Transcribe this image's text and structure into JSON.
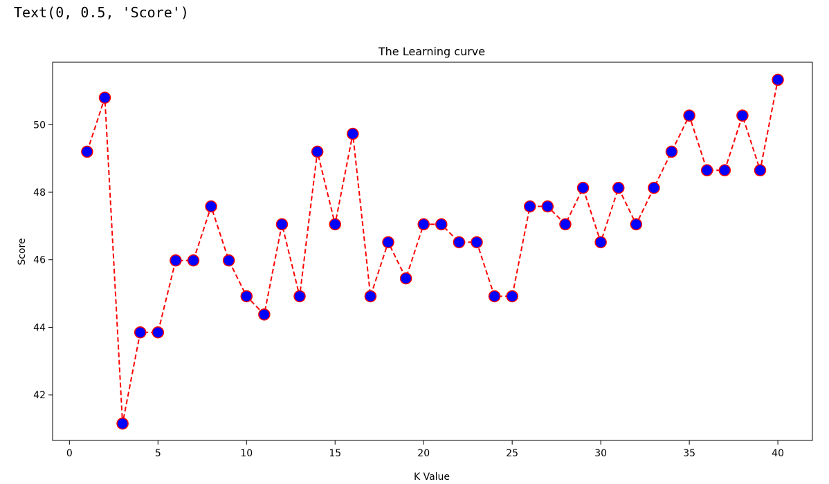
{
  "output_text": "Text(0, 0.5, 'Score')",
  "chart_data": {
    "type": "line",
    "title": "The Learning curve",
    "xlabel": "K Value",
    "ylabel": "Score",
    "xlim": [
      -0.95,
      41.95
    ],
    "ylim": [
      40.65,
      51.85
    ],
    "xticks": [
      0,
      5,
      10,
      15,
      20,
      25,
      30,
      35,
      40
    ],
    "yticks": [
      42,
      44,
      46,
      48,
      50
    ],
    "grid": false,
    "line_color": "#ff0000",
    "line_style": "dashed",
    "marker_face_color": "#0000ff",
    "marker_edge_color": "#ff0000",
    "series": [
      {
        "x": [
          1,
          2,
          3,
          4,
          5,
          6,
          7,
          8,
          9,
          10,
          11,
          12,
          13,
          14,
          15,
          16,
          17,
          18,
          19,
          20,
          21,
          22,
          23,
          24,
          25,
          26,
          27,
          28,
          29,
          30,
          31,
          32,
          33,
          34,
          35,
          36,
          37,
          38,
          39,
          40
        ],
        "values": [
          49.2,
          50.8,
          41.15,
          43.85,
          43.85,
          45.98,
          45.98,
          47.58,
          45.98,
          44.92,
          44.38,
          47.05,
          44.92,
          49.2,
          47.05,
          49.73,
          44.92,
          46.52,
          45.45,
          47.05,
          47.05,
          46.52,
          46.52,
          44.92,
          44.92,
          47.58,
          47.58,
          47.05,
          48.13,
          46.52,
          48.13,
          47.05,
          48.13,
          49.2,
          50.27,
          48.65,
          48.65,
          50.27,
          48.65,
          51.33
        ]
      }
    ]
  }
}
